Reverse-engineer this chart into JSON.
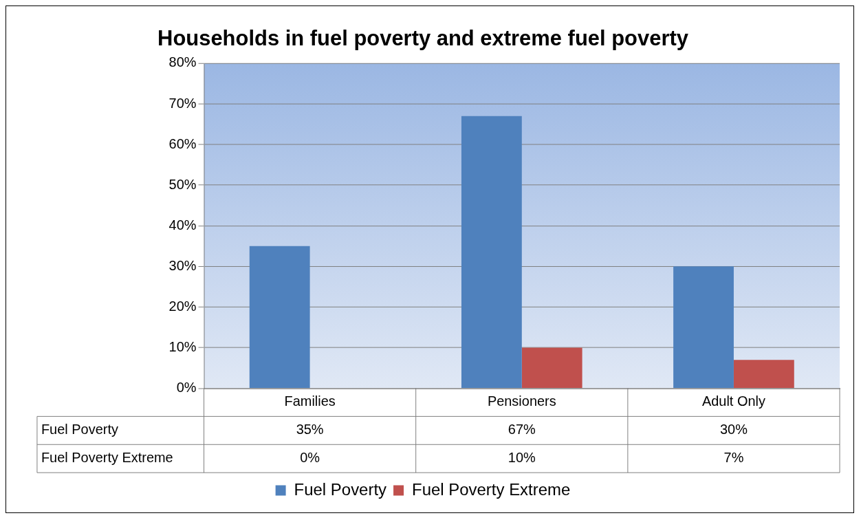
{
  "chart_data": {
    "type": "bar",
    "title": "Households in fuel poverty and extreme fuel poverty",
    "categories": [
      "Families",
      "Pensioners",
      "Adult Only"
    ],
    "series": [
      {
        "name": "Fuel Poverty",
        "color": "#4f81bd",
        "values": [
          35,
          67,
          30
        ],
        "value_labels": [
          "35%",
          "67%",
          "30%"
        ]
      },
      {
        "name": "Fuel Poverty Extreme",
        "color": "#c0504d",
        "values": [
          0,
          10,
          7
        ],
        "value_labels": [
          "0%",
          "10%",
          "7%"
        ]
      }
    ],
    "ylim": [
      0,
      80
    ],
    "yticks": [
      {
        "value": 0,
        "label": "0%"
      },
      {
        "value": 10,
        "label": "10%"
      },
      {
        "value": 20,
        "label": "20%"
      },
      {
        "value": 30,
        "label": "30%"
      },
      {
        "value": 40,
        "label": "40%"
      },
      {
        "value": 50,
        "label": "50%"
      },
      {
        "value": 60,
        "label": "60%"
      },
      {
        "value": 70,
        "label": "70%"
      },
      {
        "value": 80,
        "label": "80%"
      }
    ],
    "grid": "y",
    "legend": "bottom"
  }
}
